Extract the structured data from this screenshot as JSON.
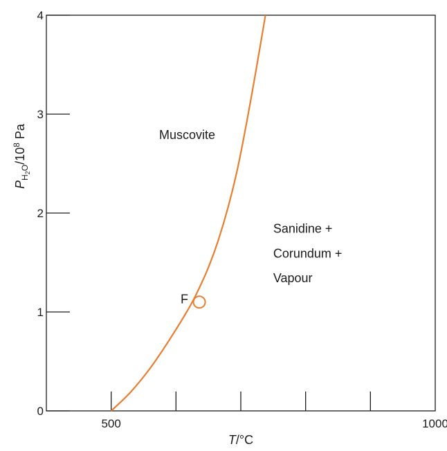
{
  "chart_data": {
    "type": "line",
    "xlabel_var": "T",
    "xlabel_unit": "/°C",
    "ylabel_var": "P",
    "ylabel_sub": "H",
    "ylabel_subsub": "2",
    "ylabel_sub_tail": "O",
    "ylabel_unit_pre": "/10",
    "ylabel_unit_exp": "8",
    "ylabel_unit_post": " Pa",
    "xlim": [
      400,
      1000
    ],
    "ylim": [
      0,
      4
    ],
    "x_ticks": [
      500,
      600,
      700,
      800,
      900
    ],
    "x_tick_labels": [
      {
        "value": 500,
        "label": "500"
      },
      {
        "value": 1000,
        "label": "1000"
      }
    ],
    "y_ticks": [
      0,
      1,
      2,
      3,
      4
    ],
    "y_tick_labels": [
      "0",
      "1",
      "2",
      "3",
      "4"
    ],
    "grid": false,
    "series": [
      {
        "color": "#e87d2f",
        "x": [
          500,
          530,
          560,
          590,
          620,
          635,
          650,
          665,
          680,
          695,
          710,
          725,
          738
        ],
        "y": [
          0.0,
          0.19,
          0.43,
          0.72,
          1.04,
          1.23,
          1.45,
          1.72,
          2.05,
          2.45,
          2.95,
          3.5,
          4.0
        ]
      }
    ],
    "point": {
      "label": "F",
      "x": 636,
      "y": 1.1
    },
    "annotations": [
      {
        "text": "Muscovite",
        "x": 574,
        "y": 2.75
      },
      {
        "text": "Sanidine +",
        "x": 750,
        "y": 1.8
      },
      {
        "text": "Corundum +",
        "x": 750,
        "y": 1.55
      },
      {
        "text": "Vapour",
        "x": 750,
        "y": 1.3
      }
    ]
  }
}
